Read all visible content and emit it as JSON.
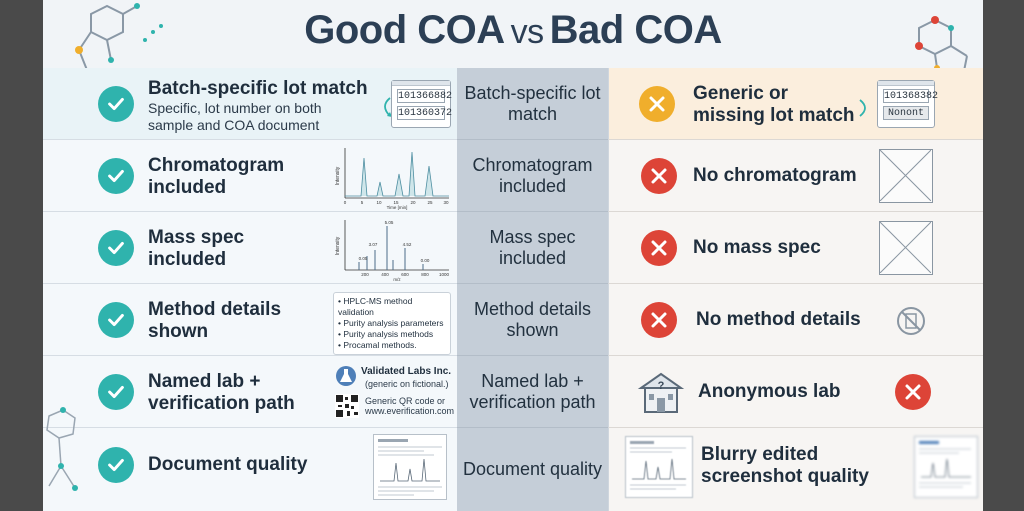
{
  "title": {
    "good": "Good COA",
    "vs": "vs",
    "bad": "Bad COA"
  },
  "rows": [
    {
      "good_title": "Batch-specific lot match",
      "good_sub": "Specific, lot number on both sample and COA document",
      "lot_values": [
        "101366882",
        "101360372"
      ],
      "middle": "Batch-specific lot match",
      "bad_title": "Generic or missing lot match",
      "bad_lot_values": [
        "101368382",
        "Nonont"
      ]
    },
    {
      "good_title": "Chromatogram included",
      "chart_ylabel": "Intensity",
      "chart_xlabel": "Time [min]",
      "chart_ticks": [
        "0",
        "5",
        "10",
        "15",
        "20",
        "25",
        "30"
      ],
      "middle": "Chromatogram included",
      "bad_title": "No chromatogram"
    },
    {
      "good_title": "Mass spec included",
      "chart_ylabel": "Intensity",
      "chart_xlabel": "m/z",
      "chart_ticks": [
        "200",
        "400",
        "600",
        "800",
        "1000"
      ],
      "peak_labels": [
        "5.05",
        "3.07",
        "0.05",
        "4.52",
        "0.00"
      ],
      "middle": "Mass spec included",
      "bad_title": "No mass spec"
    },
    {
      "good_title": "Method details shown",
      "bullets": [
        "HPLC-MS method validation",
        "Purity analysis parameters",
        "Purity analysis methods",
        "Procamal methods."
      ],
      "middle": "Method details shown",
      "bad_title": "No method details"
    },
    {
      "good_title": "Named lab + verification path",
      "lab_name": "Validated Labs Inc.",
      "lab_note": "(generic on fictional.)",
      "qr_note_1": "Generic QR code or",
      "qr_note_2": "www.everification.com",
      "middle": "Named lab + verification path",
      "bad_title": "Anonymous lab"
    },
    {
      "good_title": "Document quality",
      "middle": "Document quality",
      "bad_title": "Blurry edited screenshot quality"
    }
  ],
  "colors": {
    "check": "#2fb3ad",
    "cross": "#dd4437",
    "warn": "#f0ae2c",
    "title": "#2c3f55"
  }
}
